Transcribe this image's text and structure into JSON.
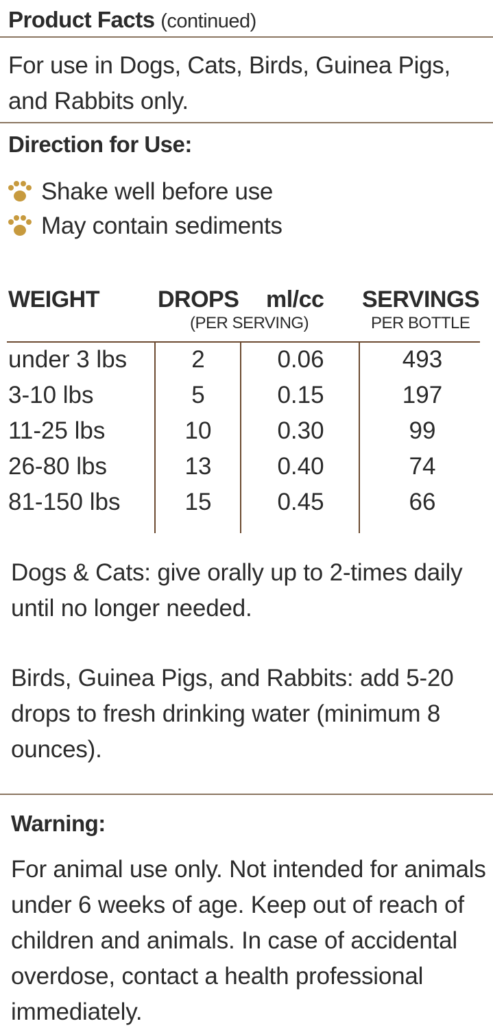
{
  "header": {
    "title": "Product Facts",
    "title_suffix": "(continued)"
  },
  "intro": "For use in Dogs, Cats, Birds, Guinea Pigs, and Rabbits only.",
  "directions": {
    "heading": "Direction for Use:",
    "bullets": [
      {
        "icon": "paw-icon",
        "text": "Shake well before use"
      },
      {
        "icon": "paw-icon",
        "text": "May contain sediments"
      }
    ]
  },
  "dosage_table": {
    "headers": {
      "weight": "WEIGHT",
      "drops": "DROPS",
      "ml": "ml/cc",
      "servings": "SERVINGS",
      "per_serving": "(PER SERVING)",
      "per_bottle": "PER BOTTLE"
    },
    "rows": [
      {
        "weight": "under 3 lbs",
        "drops": "2",
        "ml": "0.06",
        "servings": "493"
      },
      {
        "weight": "3-10 lbs",
        "drops": "5",
        "ml": "0.15",
        "servings": "197"
      },
      {
        "weight": "11-25 lbs",
        "drops": "10",
        "ml": "0.30",
        "servings": "99"
      },
      {
        "weight": "26-80 lbs",
        "drops": "13",
        "ml": "0.40",
        "servings": "74"
      },
      {
        "weight": "81-150 lbs",
        "drops": "15",
        "ml": "0.45",
        "servings": "66"
      }
    ]
  },
  "instructions": {
    "dogs_cats": "Dogs & Cats: give orally up to 2-times daily until no longer needed.",
    "others": "Birds, Guinea Pigs, and Rabbits: add 5-20 drops to fresh drinking water (minimum 8 ounces)."
  },
  "warning": {
    "heading": "Warning:",
    "text": "For animal use only. Not intended for animals under 6 weeks of age. Keep out of reach of children and animals. In case of accidental overdose, contact a health professional immediately."
  },
  "colors": {
    "rule": "#8a7560",
    "table_lines": "#6b4a30",
    "paw": "#c79a3e",
    "text": "#2b2b2b"
  }
}
